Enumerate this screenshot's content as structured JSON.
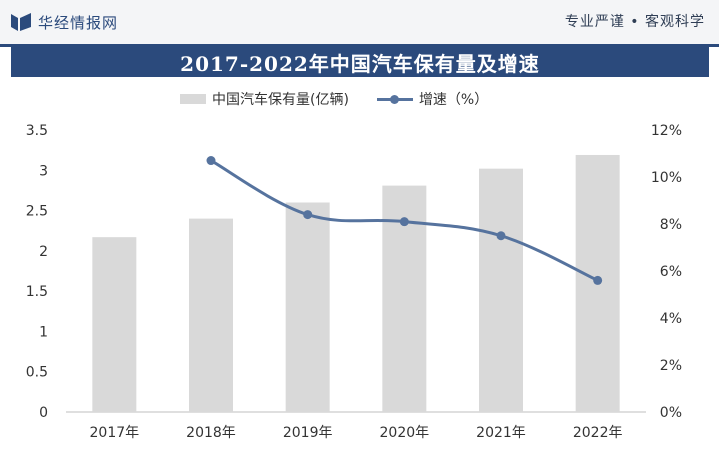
{
  "header": {
    "brand": "华经情报网",
    "motto": "专业严谨 • 客观科学"
  },
  "title": "2017-2022年中国汽车保有量及增速",
  "legend": {
    "bar_label": "中国汽车保有量(亿辆)",
    "line_label": "增速（%）"
  },
  "colors": {
    "header_blue": "#2b4a7c",
    "bar": "#d9d9d9",
    "line": "#56739e"
  },
  "chart_data": {
    "type": "bar",
    "categories": [
      "2017年",
      "2018年",
      "2019年",
      "2020年",
      "2021年",
      "2022年"
    ],
    "series": [
      {
        "name": "中国汽车保有量(亿辆)",
        "type": "bar",
        "axis": "left",
        "values": [
          2.17,
          2.4,
          2.6,
          2.81,
          3.02,
          3.19
        ]
      },
      {
        "name": "增速（%）",
        "type": "line",
        "axis": "right",
        "values": [
          null,
          10.7,
          8.4,
          8.1,
          7.5,
          5.6
        ]
      }
    ],
    "y_left": {
      "ticks": [
        "0",
        "0.5",
        "1",
        "1.5",
        "2",
        "2.5",
        "3",
        "3.5"
      ],
      "ylim": [
        0,
        3.5
      ]
    },
    "y_right": {
      "ticks": [
        "0%",
        "2%",
        "4%",
        "6%",
        "8%",
        "10%",
        "12%"
      ],
      "ylim": [
        0,
        12
      ]
    },
    "grid": false,
    "legend_position": "top"
  }
}
